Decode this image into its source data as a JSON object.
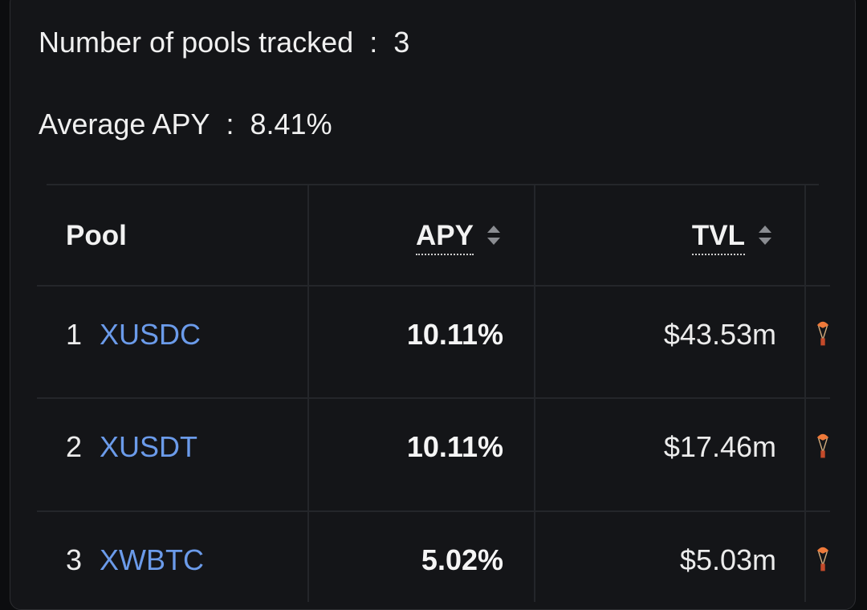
{
  "stats": [
    {
      "label": "Number of pools tracked",
      "separator": ":",
      "value": "3"
    },
    {
      "label": "Average APY",
      "separator": ":",
      "value": "8.41%"
    }
  ],
  "table": {
    "headers": [
      "Pool",
      "APY",
      "TVL"
    ],
    "rows": [
      {
        "rank": "1",
        "name": "XUSDC",
        "apy": "10.11%",
        "tvl": "$43.53m"
      },
      {
        "rank": "2",
        "name": "XUSDT",
        "apy": "10.11%",
        "tvl": "$17.46m"
      },
      {
        "rank": "3",
        "name": "XWBTC",
        "apy": "5.02%",
        "tvl": "$5.03m"
      }
    ]
  }
}
